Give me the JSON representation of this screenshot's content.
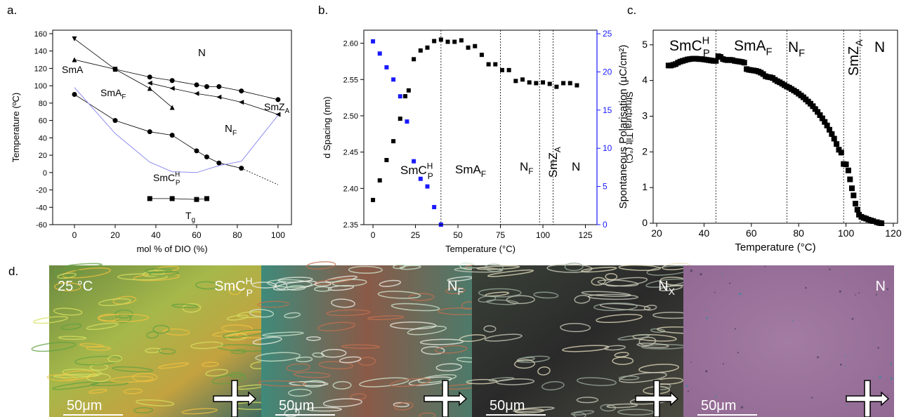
{
  "chart_data": [
    {
      "type": "line",
      "panel_label": "a.",
      "xlabel": "mol % of DIO (%)",
      "ylabel": "Temperature (ºC)",
      "xlim": [
        -10.7,
        106.6
      ],
      "ylim": [
        -60,
        164
      ],
      "xticks": [
        0,
        20,
        40,
        60,
        80,
        100
      ],
      "yticks": [
        -60,
        -40,
        -20,
        0,
        20,
        40,
        60,
        80,
        100,
        120,
        140,
        160
      ],
      "series": [
        {
          "marker": "triangle-down",
          "color": "#000000",
          "x": [
            0,
            20
          ],
          "values": [
            154,
            119
          ]
        },
        {
          "marker": "triangle-up",
          "color": "#000000",
          "x": [
            0,
            20,
            37,
            48
          ],
          "values": [
            130,
            119,
            97,
            75
          ]
        },
        {
          "marker": "circle",
          "color": "#000000",
          "x": [
            20,
            37,
            48,
            60,
            65,
            71,
            82,
            100
          ],
          "values": [
            119,
            110,
            106,
            101,
            99,
            99,
            94,
            84
          ]
        },
        {
          "marker": "triangle-left",
          "color": "#000000",
          "x": [
            37,
            48,
            60,
            71,
            82,
            100
          ],
          "values": [
            103,
            97,
            91,
            87,
            81,
            67
          ]
        },
        {
          "marker": "circle",
          "color": "#000000",
          "x": [
            0,
            20,
            37,
            48,
            60,
            65,
            71,
            82
          ],
          "values": [
            90,
            60,
            47,
            43,
            25,
            18,
            11,
            5
          ]
        },
        {
          "marker": "none",
          "dashed": true,
          "color": "#000000",
          "x": [
            82,
            100
          ],
          "values": [
            5,
            -14
          ]
        },
        {
          "marker": "square",
          "color": "#000000",
          "x": [
            37,
            48,
            60,
            65
          ],
          "values": [
            -30,
            -30,
            -31,
            -30
          ]
        },
        {
          "marker": "none",
          "color": "#8c8cf0",
          "x": [
            0,
            20,
            37,
            48,
            60,
            71,
            82,
            100
          ],
          "values": [
            98,
            45,
            12,
            1,
            0,
            8,
            13,
            66
          ]
        }
      ],
      "annotations": [
        {
          "text": "N"
        },
        {
          "text": "SmA"
        },
        {
          "text": "SmA",
          "sub": "F"
        },
        {
          "text": "N",
          "sub": "F"
        },
        {
          "text": "SmC",
          "sup": "H",
          "sub": "P"
        },
        {
          "text": "SmZ",
          "sub": "A"
        },
        {
          "text": "T",
          "sub": "g"
        }
      ]
    },
    {
      "type": "scatter",
      "panel_label": "b.",
      "xlabel": "Temperature (°C)",
      "ylabel": "d Spacing (nm)",
      "y2label": "Structural Tilt (°C)",
      "xlim": [
        -5.4,
        131.8
      ],
      "ylim": [
        2.35,
        2.618
      ],
      "y2lim": [
        0,
        25.46
      ],
      "xticks": [
        0,
        25,
        50,
        75,
        100,
        125
      ],
      "yticks": [
        2.35,
        {
          "value": 2.4,
          "label": "2.40"
        },
        2.45,
        {
          "value": 2.5,
          "label": "2.50"
        },
        2.55,
        {
          "value": 2.6,
          "label": "2.60"
        }
      ],
      "y2ticks": [
        0,
        5,
        10,
        15,
        20,
        25
      ],
      "vlines": [
        40,
        75,
        98,
        106
      ],
      "series": [
        {
          "marker": "square",
          "color": "#000000",
          "x": [
            0,
            4,
            8,
            12,
            16,
            19,
            21,
            24,
            28,
            32,
            36,
            40,
            44,
            48,
            52,
            56,
            60,
            64,
            68,
            72,
            76,
            80,
            84,
            88,
            92,
            96,
            100,
            104,
            108,
            112,
            116,
            120
          ],
          "values": [
            2.384,
            2.411,
            2.439,
            2.465,
            2.496,
            2.527,
            2.535,
            2.578,
            2.59,
            2.594,
            2.603,
            2.605,
            2.602,
            2.602,
            2.604,
            2.594,
            2.596,
            2.584,
            2.571,
            2.571,
            2.563,
            2.563,
            2.548,
            2.55,
            2.546,
            2.545,
            2.546,
            2.544,
            2.54,
            2.545,
            2.545,
            2.542
          ]
        },
        {
          "marker": "square",
          "color": "#1a1aff",
          "axis": "y2",
          "x": [
            0,
            4,
            8,
            12,
            16,
            20,
            24,
            28,
            32,
            36,
            40
          ],
          "values": [
            24,
            22.4,
            20.6,
            19,
            16.8,
            13.5,
            8.3,
            6,
            5,
            2.3,
            0
          ]
        }
      ],
      "annotations": [
        {
          "text": "SmC",
          "sup": "H",
          "sub": "P"
        },
        {
          "text": "SmA",
          "sub": "F"
        },
        {
          "text": "N",
          "sub": "F"
        },
        {
          "text": "SmZ",
          "sub": "A"
        },
        {
          "text": "N"
        }
      ]
    },
    {
      "type": "scatter",
      "panel_label": "c.",
      "xlabel": "Temperature (°C)",
      "ylabel": "Spontaneous Polarisation (μC/cm²)",
      "xlim": [
        18.5,
        121.8
      ],
      "ylim": [
        0,
        5.41
      ],
      "xticks": [
        20,
        40,
        60,
        80,
        100,
        120
      ],
      "yticks": [
        0,
        1,
        2,
        3,
        4,
        5
      ],
      "vlines": [
        45,
        75,
        99,
        106
      ],
      "series": [
        {
          "marker": "square",
          "color": "#000000",
          "x": [
            25,
            26,
            27,
            28,
            29,
            30,
            31,
            32,
            33,
            34,
            35,
            36,
            37,
            38,
            39,
            40,
            41,
            42,
            43,
            44,
            45,
            46,
            47,
            48,
            49,
            50,
            51,
            52,
            53,
            54,
            55,
            56,
            57,
            58,
            59,
            60,
            61,
            62,
            63,
            64,
            65,
            66,
            67,
            68,
            69,
            70,
            71,
            72,
            73,
            74,
            75,
            76,
            77,
            78,
            79,
            80,
            81,
            82,
            83,
            84,
            85,
            86,
            87,
            88,
            89,
            90,
            91,
            92,
            93,
            94,
            95,
            96,
            97,
            98,
            99,
            100,
            101,
            101.7,
            102.5,
            103.2,
            104,
            104.8,
            105.5,
            106.5,
            107.5,
            108.5,
            109.5,
            110.5,
            111.5,
            113,
            114,
            115
          ],
          "values": [
            4.42,
            4.42,
            4.44,
            4.46,
            4.5,
            4.53,
            4.55,
            4.57,
            4.59,
            4.6,
            4.61,
            4.61,
            4.61,
            4.6,
            4.6,
            4.59,
            4.58,
            4.57,
            4.56,
            4.55,
            4.55,
            4.68,
            4.66,
            4.6,
            4.58,
            4.57,
            4.58,
            4.57,
            4.55,
            4.54,
            4.53,
            4.52,
            4.5,
            4.32,
            4.3,
            4.29,
            4.28,
            4.27,
            4.25,
            4.22,
            4.18,
            4.12,
            4.1,
            4.09,
            4.07,
            4.02,
            3.98,
            3.95,
            3.91,
            3.87,
            3.83,
            3.8,
            3.76,
            3.72,
            3.68,
            3.63,
            3.58,
            3.53,
            3.47,
            3.41,
            3.35,
            3.28,
            3.2,
            3.12,
            3.03,
            2.94,
            2.84,
            2.74,
            2.62,
            2.5,
            2.37,
            2.22,
            2.06,
            1.98,
            1.66,
            1.65,
            1.48,
            1.23,
            0.98,
            0.78,
            0.55,
            0.38,
            0.24,
            0.18,
            0.15,
            0.13,
            0.1,
            0.08,
            0.06,
            0.03,
            0.01,
            0
          ]
        }
      ],
      "annotations": [
        {
          "text": "SmC",
          "sup": "H",
          "sub": "P"
        },
        {
          "text": "SmA",
          "sub": "F"
        },
        {
          "text": "N",
          "sub": "F"
        },
        {
          "text": "SmZ",
          "sub": "A"
        },
        {
          "text": "N"
        }
      ]
    }
  ],
  "micrographs": {
    "panel_label": "d.",
    "images": [
      {
        "labels": [
          {
            "text": "25 °C"
          },
          {
            "text": "SmC",
            "sup": "H",
            "sub": "P"
          }
        ],
        "scale_bar": "50μm"
      },
      {
        "labels": [
          {
            "text": "N",
            "sub": "F"
          }
        ],
        "scale_bar": "50μm"
      },
      {
        "labels": [
          {
            "text": "N",
            "sub": "X"
          }
        ],
        "scale_bar": "50μm"
      },
      {
        "labels": [
          {
            "text": "N"
          }
        ],
        "scale_bar": "50μm"
      }
    ]
  }
}
